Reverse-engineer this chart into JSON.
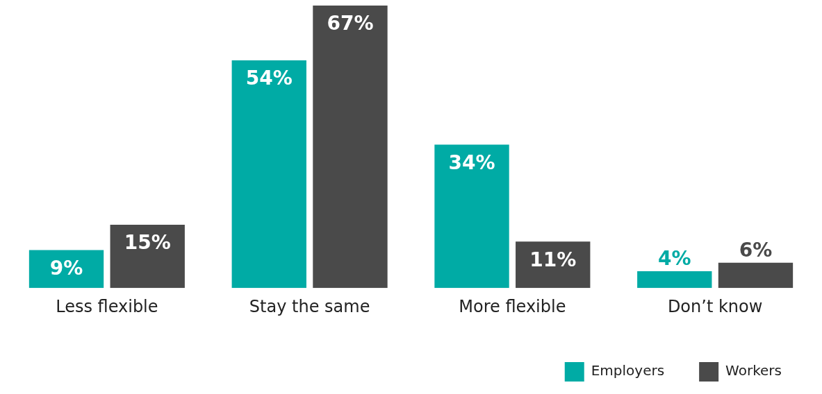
{
  "chart_data": {
    "type": "bar",
    "categories": [
      "Less flexible",
      "Stay the same",
      "More flexible",
      "Don’t know"
    ],
    "series": [
      {
        "name": "Employers",
        "color": "#00aba5",
        "values": [
          9,
          54,
          34,
          4
        ],
        "value_labels": [
          "9%",
          "54%",
          "34%",
          "4%"
        ]
      },
      {
        "name": "Workers",
        "color": "#4a4a4a",
        "values": [
          15,
          67,
          11,
          6
        ],
        "value_labels": [
          "15%",
          "67%",
          "11%",
          "6%"
        ]
      }
    ],
    "legend": "bottom right",
    "grid": false
  }
}
